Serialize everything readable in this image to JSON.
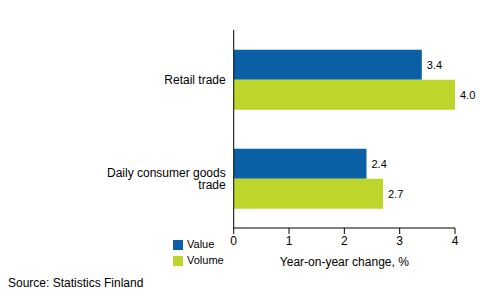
{
  "chart_data": {
    "type": "bar",
    "orientation": "horizontal",
    "categories": [
      "Retail trade",
      "Daily consumer goods trade"
    ],
    "series": [
      {
        "name": "Value",
        "color": "#0b5fa5",
        "values": [
          3.4,
          2.4
        ]
      },
      {
        "name": "Volume",
        "color": "#bed52b",
        "values": [
          4.0,
          2.7
        ]
      }
    ],
    "x_label": "Year-on-year change, %",
    "xlim": [
      0,
      4
    ],
    "xticks": [
      0,
      1,
      2,
      3,
      4
    ],
    "grid": false,
    "data_labels": true,
    "legend": "bottom",
    "annotations": [
      "Source: Statistics Finland"
    ]
  }
}
